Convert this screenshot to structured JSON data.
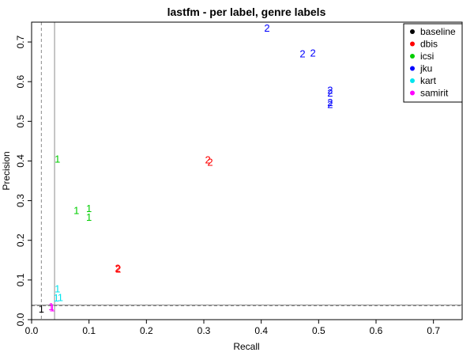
{
  "chart_data": {
    "type": "scatter",
    "title": "lastfm - per label, genre labels",
    "xlabel": "Recall",
    "ylabel": "Precision",
    "xlim": [
      0,
      0.75
    ],
    "ylim": [
      0,
      0.75
    ],
    "xticks": [
      "0.0",
      "0.1",
      "0.2",
      "0.3",
      "0.4",
      "0.5",
      "0.6",
      "0.7"
    ],
    "yticks": [
      "0.0",
      "0.1",
      "0.2",
      "0.3",
      "0.4",
      "0.5",
      "0.6",
      "0.7"
    ],
    "legend_position": "top-right",
    "reference_lines": [
      {
        "orientation": "vertical",
        "value": 0.017,
        "style": "dashed"
      },
      {
        "orientation": "vertical",
        "value": 0.04,
        "style": "solid"
      },
      {
        "orientation": "horizontal",
        "value": 0.035,
        "style": "dashed"
      },
      {
        "orientation": "horizontal",
        "value": 0.037,
        "style": "solid"
      }
    ],
    "series": [
      {
        "name": "baseline",
        "color": "#000000",
        "points": [
          {
            "x": 0.017,
            "y": 0.027,
            "label": "1"
          }
        ]
      },
      {
        "name": "dbis",
        "color": "#ff0000",
        "points": [
          {
            "x": 0.15,
            "y": 0.13,
            "label": "2"
          },
          {
            "x": 0.151,
            "y": 0.128,
            "label": "2"
          },
          {
            "x": 0.307,
            "y": 0.403,
            "label": "2"
          },
          {
            "x": 0.311,
            "y": 0.397,
            "label": "2"
          }
        ]
      },
      {
        "name": "icsi",
        "color": "#00cd00",
        "points": [
          {
            "x": 0.045,
            "y": 0.405,
            "label": "1"
          },
          {
            "x": 0.078,
            "y": 0.275,
            "label": "1"
          },
          {
            "x": 0.1,
            "y": 0.28,
            "label": "1"
          },
          {
            "x": 0.1,
            "y": 0.258,
            "label": "1"
          }
        ]
      },
      {
        "name": "jku",
        "color": "#0000ff",
        "points": [
          {
            "x": 0.41,
            "y": 0.735,
            "label": "2"
          },
          {
            "x": 0.472,
            "y": 0.67,
            "label": "2"
          },
          {
            "x": 0.49,
            "y": 0.672,
            "label": "2"
          },
          {
            "x": 0.52,
            "y": 0.578,
            "label": "2"
          },
          {
            "x": 0.52,
            "y": 0.571,
            "label": "2"
          },
          {
            "x": 0.52,
            "y": 0.548,
            "label": "2"
          },
          {
            "x": 0.52,
            "y": 0.543,
            "label": "2"
          }
        ]
      },
      {
        "name": "kart",
        "color": "#00e5ee",
        "points": [
          {
            "x": 0.045,
            "y": 0.078,
            "label": "1"
          },
          {
            "x": 0.043,
            "y": 0.055,
            "label": "1"
          },
          {
            "x": 0.05,
            "y": 0.056,
            "label": "1"
          }
        ]
      },
      {
        "name": "samirit",
        "color": "#ff00ff",
        "points": [
          {
            "x": 0.034,
            "y": 0.033,
            "label": "1"
          },
          {
            "x": 0.036,
            "y": 0.03,
            "label": "1"
          }
        ]
      }
    ]
  }
}
